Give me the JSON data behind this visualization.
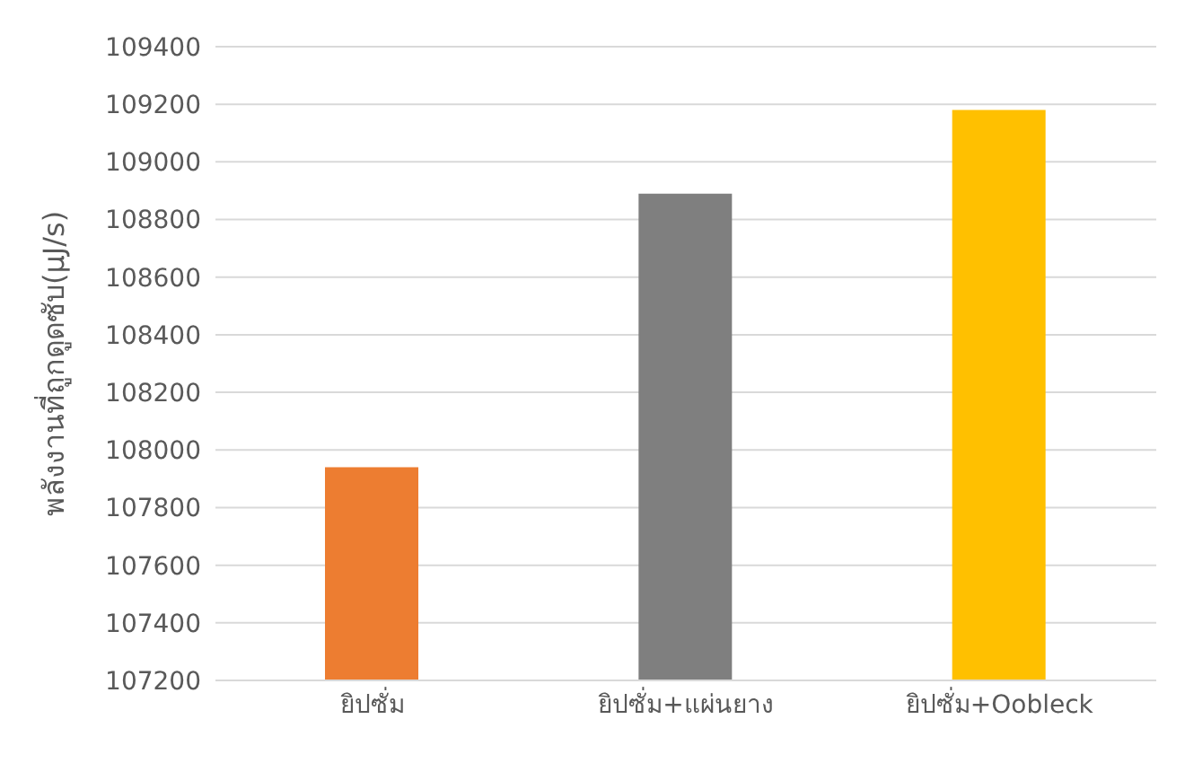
{
  "chart_data": {
    "type": "bar",
    "ylabel": "พลังงานที่ถูกดูดซับ(μJ/s)",
    "categories": [
      "ยิปซั่ม",
      "ยิปซั่ม+แผ่นยาง",
      "ยิปซั่ม+Oobleck"
    ],
    "values": [
      107940,
      108890,
      109180
    ],
    "colors": [
      "#ed7d31",
      "#7f7f7f",
      "#ffc000"
    ],
    "ylim": [
      107200,
      109400
    ],
    "yticks": [
      107200,
      107400,
      107600,
      107800,
      108000,
      108200,
      108400,
      108600,
      108800,
      109000,
      109200,
      109400
    ],
    "grid": "y"
  }
}
